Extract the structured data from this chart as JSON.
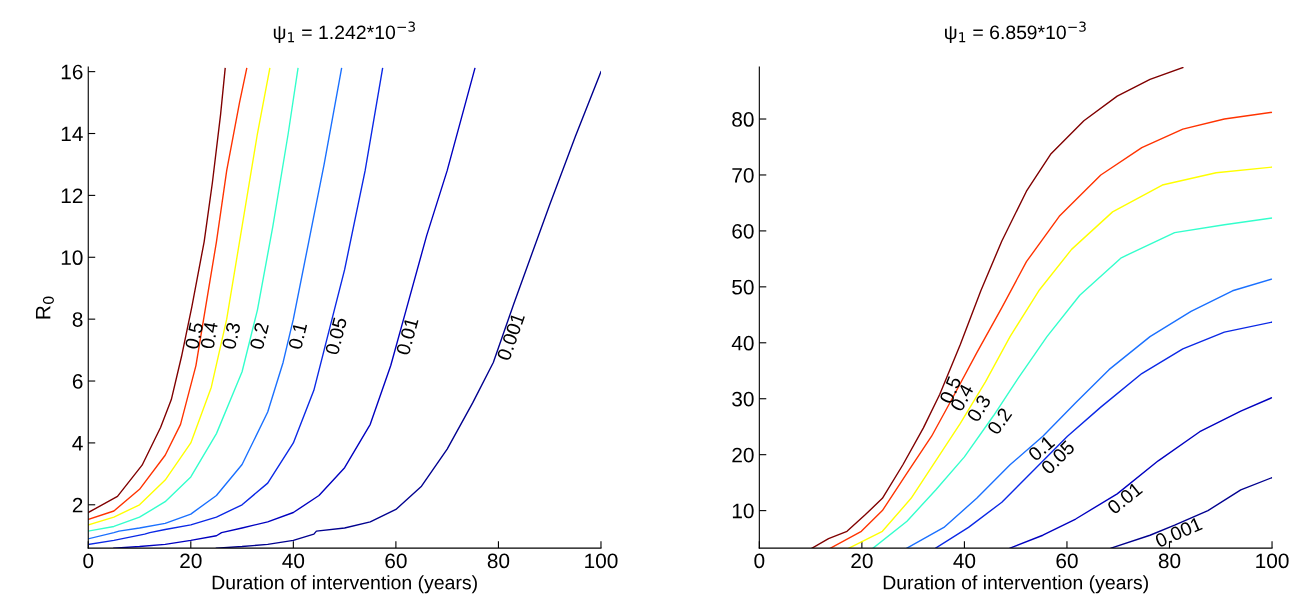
{
  "chart_data": [
    {
      "type": "line",
      "title": "ψ$_{1}$ = 1.242*10$^{−3}$",
      "xlabel": "Duration of intervention (years)",
      "ylabel": "R$_{0}$",
      "xlim": [
        0,
        100
      ],
      "xticks": [
        0,
        20,
        40,
        60,
        80,
        100
      ],
      "ylim": [
        0.6,
        16.15
      ],
      "yticks": [
        2,
        4,
        6,
        8,
        10,
        12,
        14,
        16
      ],
      "grid": false,
      "legend": false,
      "series": [
        {
          "name": "0.5",
          "color": "#800000",
          "x": [
            0,
            5.7,
            10.5,
            14.1,
            16.2,
            18.2,
            20.2,
            22.6,
            24.2,
            25.8,
            26.7
          ],
          "values": [
            1.75,
            2.27,
            3.28,
            4.5,
            5.4,
            6.8,
            8.4,
            10.5,
            12.4,
            14.6,
            16.1
          ]
        },
        {
          "name": "0.4",
          "color": "#ff3300",
          "x": [
            0,
            5,
            10,
            15,
            18,
            21,
            23,
            25,
            27,
            29.5,
            30.9
          ],
          "values": [
            1.53,
            1.8,
            2.5,
            3.6,
            4.6,
            6.5,
            8.5,
            10.5,
            12.8,
            15,
            16.1
          ]
        },
        {
          "name": "0.3",
          "color": "#ffff00",
          "x": [
            0,
            5,
            10,
            15,
            20,
            24,
            27,
            30,
            33,
            35.4
          ],
          "values": [
            1.35,
            1.6,
            2.0,
            2.8,
            4.0,
            5.8,
            8.0,
            11,
            14,
            16.1
          ]
        },
        {
          "name": "0.2",
          "color": "#33ffcc",
          "x": [
            0,
            5,
            10,
            15,
            20,
            25,
            30,
            33,
            36,
            39,
            40.9
          ],
          "values": [
            1.15,
            1.3,
            1.6,
            2.1,
            2.9,
            4.3,
            6.3,
            8.3,
            11,
            14,
            16.1
          ]
        },
        {
          "name": "0.1",
          "color": "#1a70ff",
          "x": [
            0,
            5,
            6,
            10,
            15,
            20,
            25,
            30,
            35,
            38,
            40,
            43,
            46,
            49.4
          ],
          "values": [
            0.9,
            1.1,
            1.15,
            1.25,
            1.4,
            1.7,
            2.3,
            3.3,
            5.0,
            6.6,
            8.0,
            10.5,
            13,
            16.1
          ]
        },
        {
          "name": "0.05",
          "color": "#0a28e6",
          "x": [
            0,
            5,
            11,
            12,
            15,
            20,
            25,
            30,
            35,
            40,
            44,
            46,
            50,
            54,
            57.4
          ],
          "values": [
            0.72,
            0.85,
            1.05,
            1.1,
            1.2,
            1.35,
            1.6,
            2.0,
            2.7,
            4.0,
            5.7,
            7.0,
            9.6,
            12.8,
            16.1
          ]
        },
        {
          "name": "0.01",
          "color": "#0000c0",
          "x": [
            5,
            10,
            15,
            20,
            25,
            26,
            30,
            35,
            40,
            45,
            50,
            55,
            59,
            62,
            66,
            70,
            75.4
          ],
          "values": [
            0.6,
            0.65,
            0.72,
            0.85,
            1.0,
            1.1,
            1.25,
            1.45,
            1.75,
            2.3,
            3.2,
            4.6,
            6.5,
            8.3,
            10.7,
            12.8,
            16.1
          ]
        },
        {
          "name": "0.001",
          "color": "#00008f",
          "x": [
            25,
            30,
            35,
            40,
            44,
            44.5,
            50,
            55,
            60,
            65,
            70,
            75,
            79,
            83,
            90,
            95,
            100
          ],
          "values": [
            0.6,
            0.65,
            0.72,
            0.85,
            1.05,
            1.15,
            1.25,
            1.45,
            1.85,
            2.6,
            3.8,
            5.3,
            6.6,
            8.5,
            11.7,
            13.9,
            16.0
          ]
        }
      ]
    },
    {
      "type": "line",
      "title": "ψ$_{1}$ = 6.859*10$^{−3}$",
      "xlabel": "Duration of intervention (years)",
      "xlim": [
        0,
        100
      ],
      "xticks": [
        0,
        20,
        40,
        60,
        80,
        100
      ],
      "ylim": [
        3.3,
        89.3
      ],
      "yticks": [
        10,
        20,
        30,
        40,
        50,
        60,
        70,
        80
      ],
      "grid": false,
      "legend": false,
      "series": [
        {
          "name": "0.5",
          "color": "#800000",
          "x": [
            10.3,
            13.5,
            17.1,
            20.7,
            24,
            28,
            32,
            35.2,
            39.2,
            43.2,
            47.3,
            52.1,
            56.9,
            63.3,
            69.8,
            76.2,
            82.6
          ],
          "values": [
            3.3,
            5.0,
            6.3,
            9.3,
            12.2,
            18.2,
            24.8,
            30.8,
            39.7,
            49.3,
            58.2,
            67.1,
            73.8,
            79.7,
            84.1,
            87.1,
            89.2
          ]
        },
        {
          "name": "0.4",
          "color": "#ff3300",
          "x": [
            13.9,
            19.9,
            24,
            28.8,
            33.6,
            37.6,
            42.4,
            47.3,
            52.1,
            58.5,
            66.6,
            74.6,
            82.6,
            90.7,
            100
          ],
          "values": [
            3.3,
            6.3,
            10,
            16.7,
            23.3,
            30,
            38.2,
            46.3,
            54.5,
            62.6,
            70,
            74.9,
            78.2,
            80,
            81.2
          ]
        },
        {
          "name": "0.3",
          "color": "#ffff00",
          "x": [
            17.5,
            24,
            29.6,
            34.4,
            39.2,
            44.1,
            48.9,
            54.5,
            60.9,
            68.9,
            78.6,
            89.1,
            100
          ],
          "values": [
            3.3,
            6.3,
            12.2,
            18.9,
            25.6,
            33,
            41.1,
            49.3,
            56.7,
            63.4,
            68.2,
            70.4,
            71.4
          ]
        },
        {
          "name": "0.2",
          "color": "#33ffcc",
          "x": [
            22.2,
            28.8,
            34.4,
            40,
            45.7,
            50.5,
            56.1,
            62.5,
            70.6,
            81,
            90.7,
            100
          ],
          "values": [
            3.3,
            8.1,
            13.7,
            19.6,
            27,
            33.7,
            41.1,
            48.5,
            55.2,
            59.7,
            61.1,
            62.3
          ]
        },
        {
          "name": "0.1",
          "color": "#1a70ff",
          "x": [
            28.8,
            36,
            42.4,
            48.9,
            55.3,
            61.7,
            68.2,
            76.2,
            84.2,
            92.3,
            100
          ],
          "values": [
            3.3,
            7,
            12.2,
            18.2,
            23.3,
            29.3,
            35.2,
            41.1,
            45.6,
            49.3,
            51.4
          ]
        },
        {
          "name": "0.05",
          "color": "#0a28e6",
          "x": [
            34.4,
            40.8,
            47.3,
            53.7,
            60.1,
            66.6,
            74.6,
            82.6,
            90.7,
            100
          ],
          "values": [
            3.3,
            7,
            11.5,
            17.4,
            23.3,
            28.5,
            34.5,
            38.9,
            41.9,
            43.7
          ]
        },
        {
          "name": "0.01",
          "color": "#0000c0",
          "x": [
            48.9,
            55.3,
            61.7,
            69.8,
            77.8,
            85.9,
            93.9,
            100
          ],
          "values": [
            3.3,
            5.6,
            8.5,
            13,
            18.9,
            24.1,
            27.8,
            30.2
          ]
        },
        {
          "name": "0.001",
          "color": "#00008f",
          "x": [
            68.6,
            76.2,
            81,
            87.5,
            93.9,
            100
          ],
          "values": [
            3.3,
            5.6,
            7.4,
            10,
            13.7,
            15.9
          ]
        }
      ]
    }
  ]
}
